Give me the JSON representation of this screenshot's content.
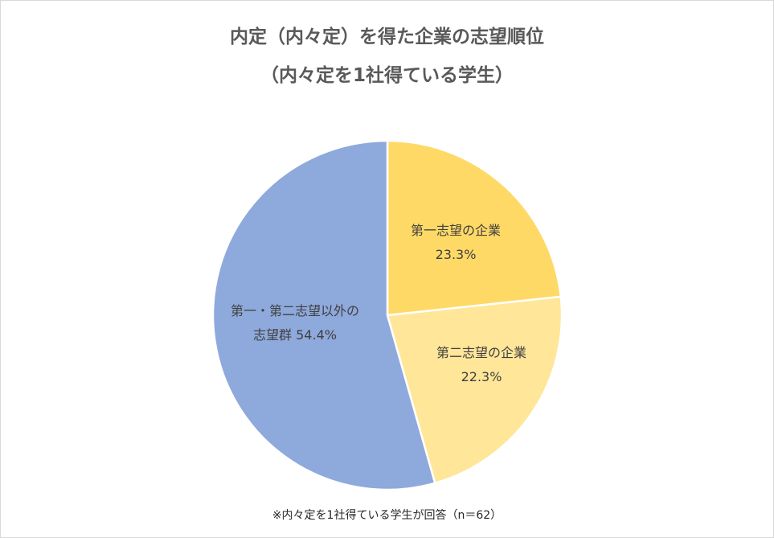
{
  "title_line1": "内定（内々定）を得た企業の志望順位",
  "title_line2": "（内々定を1社得ている学生）",
  "footnote": "※内々定を1社得ている学生が回答（n＝62）",
  "chart_data": {
    "type": "pie",
    "title": "内定（内々定）を得た企業の志望順位（内々定を1社得ている学生）",
    "unit": "%",
    "slices": [
      {
        "name": "第一志望の企業",
        "label_lines": [
          "第一志望の企業",
          "23.3%"
        ],
        "value": 23.3,
        "color": "#FFD966"
      },
      {
        "name": "第二志望の企業",
        "label_lines": [
          "第二志望の企業",
          "22.3%"
        ],
        "value": 22.3,
        "color": "#FFE699"
      },
      {
        "name": "第一・第二志望以外の志望群",
        "label_lines": [
          "第一・第二志望以外の",
          "志望群 54.4%"
        ],
        "value": 54.4,
        "color": "#8EA9DB"
      }
    ],
    "start_angle_deg": 0,
    "direction": "clockwise",
    "slice_border_color": "#ffffff"
  }
}
